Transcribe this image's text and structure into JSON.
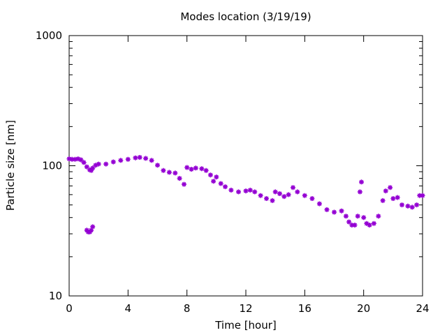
{
  "chart_data": {
    "type": "scatter",
    "title": "Modes location (3/19/19)",
    "xlabel": "Time [hour]",
    "ylabel": "Particle size [nm]",
    "xlim": [
      0,
      24
    ],
    "ylim": [
      10,
      1000
    ],
    "yscale": "log",
    "x_ticks": [
      0,
      4,
      8,
      12,
      16,
      20,
      24
    ],
    "x_tick_labels": [
      "0",
      "4",
      "8",
      "12",
      "16",
      "20",
      "24"
    ],
    "y_ticks": [
      10,
      100,
      1000
    ],
    "y_tick_labels": [
      "10",
      "100",
      "1000"
    ],
    "grid": false,
    "legend": "none",
    "marker_color": "#9400d3",
    "series": [
      {
        "values": [
          [
            0.0,
            113
          ],
          [
            0.2,
            112
          ],
          [
            0.4,
            112
          ],
          [
            0.6,
            113
          ],
          [
            0.8,
            111
          ],
          [
            1.0,
            106
          ],
          [
            1.2,
            98
          ],
          [
            1.4,
            93
          ],
          [
            1.5,
            92
          ],
          [
            1.6,
            96
          ],
          [
            1.8,
            101
          ],
          [
            2.0,
            103
          ],
          [
            2.5,
            103
          ],
          [
            3.0,
            107
          ],
          [
            3.5,
            110
          ],
          [
            4.0,
            112
          ],
          [
            4.5,
            115
          ],
          [
            4.8,
            116
          ],
          [
            5.2,
            114
          ],
          [
            5.6,
            110
          ],
          [
            6.0,
            101
          ],
          [
            6.4,
            92
          ],
          [
            6.8,
            89
          ],
          [
            7.2,
            88
          ],
          [
            7.5,
            80
          ],
          [
            7.8,
            72
          ],
          [
            8.0,
            97
          ],
          [
            8.3,
            94
          ],
          [
            8.6,
            96
          ],
          [
            9.0,
            95
          ],
          [
            9.3,
            92
          ],
          [
            9.6,
            85
          ],
          [
            9.8,
            76
          ],
          [
            10.0,
            82
          ],
          [
            10.3,
            73
          ],
          [
            10.6,
            69
          ],
          [
            11.0,
            65
          ],
          [
            11.5,
            63
          ],
          [
            12.0,
            64
          ],
          [
            12.3,
            65
          ],
          [
            12.6,
            63
          ],
          [
            13.0,
            59
          ],
          [
            13.4,
            56
          ],
          [
            13.8,
            54
          ],
          [
            14.0,
            63
          ],
          [
            14.3,
            61
          ],
          [
            14.6,
            58
          ],
          [
            14.9,
            60
          ],
          [
            15.2,
            68
          ],
          [
            15.5,
            63
          ],
          [
            16.0,
            59
          ],
          [
            16.5,
            56
          ],
          [
            17.0,
            51
          ],
          [
            17.5,
            46
          ],
          [
            18.0,
            44
          ],
          [
            18.5,
            45
          ],
          [
            18.8,
            41
          ],
          [
            19.0,
            37
          ],
          [
            19.2,
            35
          ],
          [
            19.4,
            35
          ],
          [
            19.6,
            41
          ],
          [
            19.75,
            63
          ],
          [
            19.85,
            75
          ],
          [
            20.0,
            40
          ],
          [
            20.2,
            36
          ],
          [
            20.4,
            35
          ],
          [
            20.7,
            36
          ],
          [
            21.0,
            41
          ],
          [
            21.3,
            54
          ],
          [
            21.5,
            64
          ],
          [
            21.8,
            68
          ],
          [
            22.0,
            56
          ],
          [
            22.3,
            57
          ],
          [
            22.6,
            50
          ],
          [
            23.0,
            49
          ],
          [
            23.3,
            48
          ],
          [
            23.6,
            50
          ],
          [
            23.8,
            59
          ],
          [
            24.0,
            59
          ],
          [
            1.2,
            32
          ],
          [
            1.3,
            31
          ],
          [
            1.4,
            31
          ],
          [
            1.5,
            32
          ],
          [
            1.6,
            34
          ]
        ]
      }
    ]
  }
}
